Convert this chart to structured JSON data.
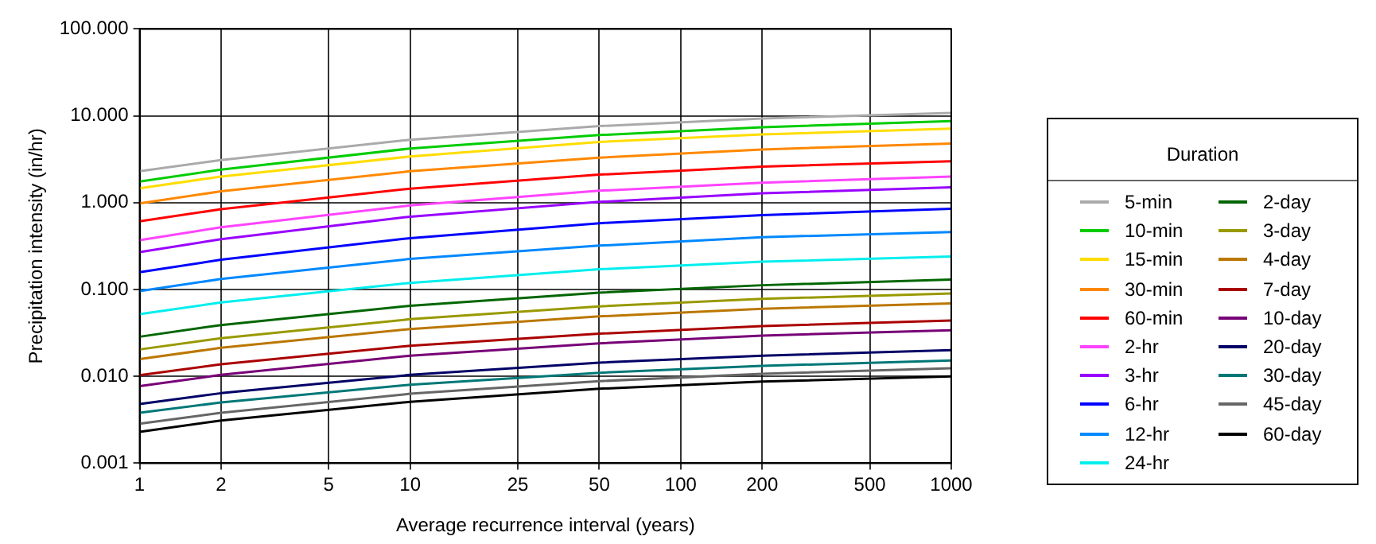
{
  "chart_data": {
    "type": "line",
    "xlabel": "Average recurrence interval (years)",
    "ylabel": "Precipitation intensity (in/hr)",
    "legend_title": "Duration",
    "legend": "right",
    "log": "xy",
    "grid": true,
    "line_style": "solid",
    "marker": "none",
    "x": [
      1,
      2,
      10,
      50,
      200,
      1000
    ],
    "xlim": [
      1,
      1000
    ],
    "xticks": [
      1,
      2,
      5,
      10,
      25,
      50,
      100,
      200,
      500,
      1000
    ],
    "ylim": [
      0.001,
      100
    ],
    "yticks": [
      {
        "value": 0.001,
        "label": "0.001"
      },
      {
        "value": 0.01,
        "label": "0.010"
      },
      {
        "value": 0.1,
        "label": "0.100"
      },
      {
        "value": 1,
        "label": "1.000"
      },
      {
        "value": 10,
        "label": "10.000"
      },
      {
        "value": 100,
        "label": "100.000"
      }
    ],
    "series": [
      {
        "name": "5-min",
        "color": "#aaaaaa",
        "values": [
          2.3,
          3.1,
          5.3,
          7.6,
          9.3,
          10.8
        ]
      },
      {
        "name": "10-min",
        "color": "#00cc00",
        "values": [
          1.75,
          2.4,
          4.2,
          6.0,
          7.4,
          8.7
        ]
      },
      {
        "name": "15-min",
        "color": "#ffdd00",
        "values": [
          1.46,
          2.0,
          3.4,
          5.0,
          6.1,
          7.1
        ]
      },
      {
        "name": "30-min",
        "color": "#ff8800",
        "values": [
          0.98,
          1.35,
          2.3,
          3.3,
          4.1,
          4.8
        ]
      },
      {
        "name": "60-min",
        "color": "#ff0000",
        "values": [
          0.61,
          0.84,
          1.45,
          2.1,
          2.6,
          3.0
        ]
      },
      {
        "name": "2-hr",
        "color": "#ff44ff",
        "values": [
          0.37,
          0.52,
          0.93,
          1.37,
          1.7,
          2.0
        ]
      },
      {
        "name": "3-hr",
        "color": "#9900ff",
        "values": [
          0.27,
          0.38,
          0.69,
          1.02,
          1.28,
          1.5
        ]
      },
      {
        "name": "6-hr",
        "color": "#0000ff",
        "values": [
          0.158,
          0.22,
          0.39,
          0.58,
          0.72,
          0.85
        ]
      },
      {
        "name": "12-hr",
        "color": "#0088ff",
        "values": [
          0.096,
          0.132,
          0.225,
          0.32,
          0.4,
          0.46
        ]
      },
      {
        "name": "24-hr",
        "color": "#00eeee",
        "values": [
          0.052,
          0.071,
          0.119,
          0.171,
          0.209,
          0.24
        ]
      },
      {
        "name": "2-day",
        "color": "#006600",
        "values": [
          0.0286,
          0.039,
          0.065,
          0.092,
          0.112,
          0.13
        ]
      },
      {
        "name": "3-day",
        "color": "#999900",
        "values": [
          0.0204,
          0.0275,
          0.0455,
          0.064,
          0.078,
          0.09
        ]
      },
      {
        "name": "4-day",
        "color": "#bb7700",
        "values": [
          0.0158,
          0.0213,
          0.035,
          0.049,
          0.06,
          0.069
        ]
      },
      {
        "name": "7-day",
        "color": "#aa0000",
        "values": [
          0.0103,
          0.0138,
          0.0225,
          0.031,
          0.038,
          0.044
        ]
      },
      {
        "name": "10-day",
        "color": "#770077",
        "values": [
          0.0077,
          0.0104,
          0.0173,
          0.024,
          0.0295,
          0.034
        ]
      },
      {
        "name": "20-day",
        "color": "#000066",
        "values": [
          0.0048,
          0.0064,
          0.0104,
          0.0144,
          0.0173,
          0.02
        ]
      },
      {
        "name": "30-day",
        "color": "#007777",
        "values": [
          0.0038,
          0.005,
          0.008,
          0.011,
          0.0132,
          0.0152
        ]
      },
      {
        "name": "45-day",
        "color": "#666666",
        "values": [
          0.00285,
          0.0038,
          0.0063,
          0.0088,
          0.0107,
          0.0124
        ]
      },
      {
        "name": "60-day",
        "color": "#000000",
        "values": [
          0.0023,
          0.0031,
          0.0051,
          0.0072,
          0.0087,
          0.01
        ]
      }
    ]
  }
}
